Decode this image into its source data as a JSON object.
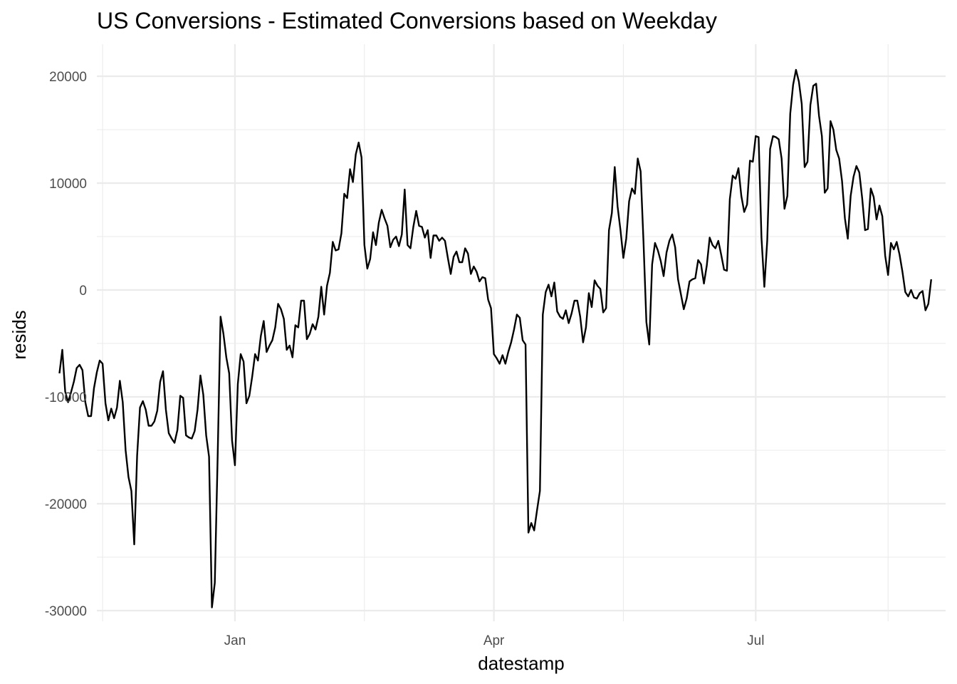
{
  "chart_data": {
    "type": "line",
    "title": "US Conversions - Estimated Conversions based on Weekday",
    "xlabel": "datestamp",
    "ylabel": "resids",
    "xlim": [
      "2017-11-14",
      "2018-09-05"
    ],
    "ylim": [
      -31000,
      23000
    ],
    "x_ticks": [
      {
        "date": "2018-01-01",
        "label": "Jan"
      },
      {
        "date": "2018-04-01",
        "label": "Apr"
      },
      {
        "date": "2018-07-01",
        "label": "Jul"
      }
    ],
    "x_minor_ticks": [
      "2017-11-16",
      "2018-02-15",
      "2018-05-16",
      "2018-08-16"
    ],
    "y_ticks": [
      -30000,
      -20000,
      -10000,
      0,
      10000,
      20000
    ],
    "y_minor_ticks": [
      -25000,
      -15000,
      -5000,
      5000,
      15000
    ],
    "grid": true,
    "series": [
      {
        "start_date": "2017-11-01",
        "values": [
          -7800,
          -5600,
          -9500,
          -10500,
          -9600,
          -8600,
          -7300,
          -7000,
          -7500,
          -10500,
          -11800,
          -11800,
          -9200,
          -7700,
          -6600,
          -6900,
          -10600,
          -12200,
          -11100,
          -12000,
          -11000,
          -8500,
          -10500,
          -15000,
          -17500,
          -18800,
          -23800,
          -15500,
          -11000,
          -10400,
          -11200,
          -12700,
          -12700,
          -12300,
          -11300,
          -8600,
          -7600,
          -11200,
          -13400,
          -13900,
          -14300,
          -13100,
          -9900,
          -10100,
          -13600,
          -13800,
          -13900,
          -13200,
          -11200,
          -8000,
          -9800,
          -13600,
          -15600,
          -29700,
          -27400,
          -15500,
          -2500,
          -4100,
          -6300,
          -7800,
          -14100,
          -16400,
          -8800,
          -6000,
          -6700,
          -10600,
          -9900,
          -8100,
          -6000,
          -6600,
          -4300,
          -2900,
          -5800,
          -5200,
          -4700,
          -3500,
          -1300,
          -1800,
          -2700,
          -5600,
          -5200,
          -6300,
          -3300,
          -3500,
          -1000,
          -1000,
          -4600,
          -4100,
          -3200,
          -3700,
          -2500,
          300,
          -2300,
          400,
          1600,
          4500,
          3700,
          3800,
          5300,
          9000,
          8600,
          11300,
          10100,
          12700,
          13800,
          12400,
          4200,
          2000,
          2900,
          5400,
          4200,
          6300,
          7500,
          6700,
          6000,
          4000,
          4700,
          5000,
          4100,
          5200,
          9400,
          4200,
          3900,
          5900,
          7400,
          6000,
          5900,
          4900,
          5600,
          3000,
          5100,
          5100,
          4600,
          4900,
          4600,
          3000,
          1500,
          3100,
          3600,
          2600,
          2600,
          3900,
          3400,
          1500,
          2200,
          1700,
          800,
          1200,
          1100,
          -900,
          -1700,
          -6000,
          -6400,
          -6900,
          -6100,
          -6900,
          -5800,
          -4900,
          -3700,
          -2300,
          -2600,
          -4700,
          -5100,
          -22700,
          -21800,
          -22500,
          -20600,
          -18800,
          -2300,
          -200,
          500,
          -600,
          700,
          -2000,
          -2500,
          -2700,
          -1900,
          -3100,
          -2200,
          -1000,
          -1000,
          -2500,
          -4900,
          -3500,
          -300,
          -1600,
          900,
          400,
          100,
          -2100,
          -1700,
          5600,
          7200,
          11500,
          7800,
          5600,
          3000,
          4800,
          8300,
          9500,
          9000,
          12300,
          11100,
          4500,
          -3000,
          -5100,
          2400,
          4400,
          3700,
          2700,
          1300,
          3500,
          4600,
          5200,
          4000,
          1000,
          -400,
          -1800,
          -800,
          800,
          1000,
          1100,
          2800,
          2400,
          600,
          2300,
          4900,
          4200,
          3900,
          4600,
          3300,
          1900,
          1800,
          8500,
          10700,
          10400,
          11400,
          8800,
          7300,
          8000,
          12100,
          12000,
          14400,
          14300,
          4900,
          300,
          4600,
          13200,
          14400,
          14300,
          14100,
          12300,
          7600,
          8800,
          16500,
          19200,
          20600,
          19500,
          17400,
          11500,
          12000,
          17300,
          19100,
          19300,
          16300,
          14400,
          9100,
          9500,
          15800,
          15000,
          13100,
          12300,
          10200,
          6700,
          4800,
          8800,
          10600,
          11600,
          11000,
          8600,
          5600,
          5700,
          9500,
          8700,
          6600,
          7900,
          6900,
          3200,
          1400,
          4400,
          3800,
          4500,
          3300,
          1700,
          -200,
          -600,
          0,
          -700,
          -800,
          -300,
          -100,
          -1900,
          -1300,
          1000
        ]
      }
    ]
  }
}
